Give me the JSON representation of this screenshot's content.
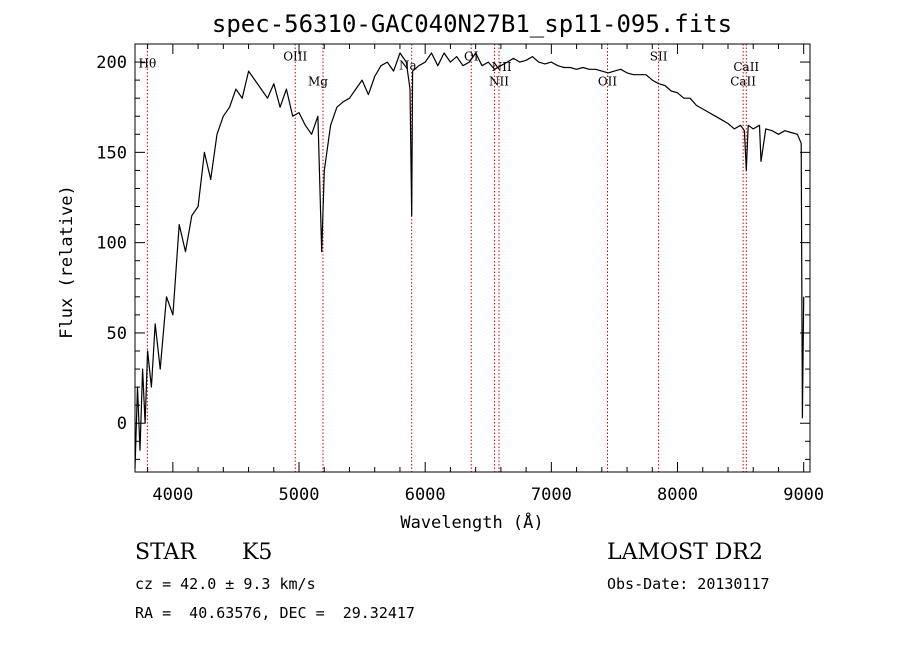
{
  "chart_data": {
    "type": "line",
    "title": "spec-56310-GAC040N27B1_sp11-095.fits",
    "xlabel": "Wavelength (Å)",
    "ylabel": "Flux (relative)",
    "xlim": [
      3700,
      9050
    ],
    "ylim": [
      -27,
      210
    ],
    "xticks": [
      4000,
      5000,
      6000,
      7000,
      8000,
      9000
    ],
    "yticks": [
      0,
      50,
      100,
      150,
      200
    ],
    "series": [
      {
        "name": "flux",
        "x": [
          3700,
          3720,
          3740,
          3760,
          3780,
          3800,
          3830,
          3860,
          3900,
          3950,
          4000,
          4050,
          4100,
          4150,
          4200,
          4250,
          4300,
          4350,
          4400,
          4450,
          4500,
          4550,
          4600,
          4650,
          4700,
          4750,
          4800,
          4850,
          4900,
          4950,
          5000,
          5050,
          5100,
          5150,
          5180,
          5200,
          5250,
          5300,
          5350,
          5400,
          5450,
          5500,
          5550,
          5600,
          5650,
          5700,
          5750,
          5800,
          5850,
          5880,
          5893,
          5900,
          5950,
          6000,
          6050,
          6100,
          6150,
          6200,
          6250,
          6300,
          6350,
          6400,
          6450,
          6500,
          6550,
          6600,
          6650,
          6700,
          6750,
          6800,
          6850,
          6900,
          6950,
          7000,
          7050,
          7100,
          7150,
          7200,
          7250,
          7300,
          7350,
          7400,
          7450,
          7500,
          7550,
          7600,
          7650,
          7700,
          7750,
          7800,
          7850,
          7900,
          7950,
          8000,
          8050,
          8100,
          8150,
          8200,
          8250,
          8300,
          8350,
          8400,
          8450,
          8500,
          8530,
          8545,
          8560,
          8600,
          8650,
          8662,
          8700,
          8750,
          8800,
          8850,
          8900,
          8950,
          8980,
          8990,
          9000
        ],
        "values": [
          -25,
          20,
          -15,
          30,
          0,
          40,
          20,
          55,
          30,
          70,
          60,
          110,
          95,
          115,
          120,
          150,
          135,
          160,
          170,
          175,
          185,
          180,
          195,
          190,
          185,
          180,
          188,
          175,
          185,
          170,
          172,
          165,
          160,
          170,
          95,
          140,
          165,
          175,
          178,
          180,
          185,
          190,
          182,
          192,
          198,
          200,
          195,
          205,
          200,
          185,
          115,
          195,
          198,
          200,
          205,
          198,
          205,
          200,
          203,
          198,
          200,
          205,
          198,
          200,
          196,
          198,
          200,
          202,
          200,
          201,
          203,
          200,
          199,
          200,
          198,
          197,
          197,
          196,
          197,
          196,
          196,
          195,
          194,
          195,
          196,
          194,
          193,
          193,
          193,
          190,
          188,
          187,
          184,
          183,
          180,
          180,
          176,
          174,
          172,
          170,
          168,
          166,
          163,
          165,
          162,
          140,
          165,
          163,
          165,
          145,
          163,
          162,
          160,
          162,
          161,
          160,
          155,
          3,
          70
        ]
      }
    ],
    "lines": [
      {
        "label": "Hθ",
        "x": 3798,
        "label_y": 197,
        "align": "center"
      },
      {
        "label": "OIII",
        "x": 4970,
        "label_y": 201,
        "align": "center"
      },
      {
        "label": "Mg",
        "x": 5190,
        "label_y": 187,
        "align": "right"
      },
      {
        "label": "Na",
        "x": 5893,
        "label_y": 196,
        "align": "right"
      },
      {
        "label": "OI",
        "x": 6365,
        "label_y": 201,
        "align": "center"
      },
      {
        "label": "NII",
        "x": 6550,
        "label_y": 195,
        "align": "left"
      },
      {
        "label": "NII",
        "x": 6585,
        "label_y": 187,
        "align": "center"
      },
      {
        "label": "OII",
        "x": 7445,
        "label_y": 187,
        "align": "center"
      },
      {
        "label": "SII",
        "x": 7850,
        "label_y": 201,
        "align": "center"
      },
      {
        "label": "CaII",
        "x": 8520,
        "label_y": 187,
        "align": "center"
      },
      {
        "label": "CaII",
        "x": 8545,
        "label_y": 195,
        "align": "center"
      }
    ]
  },
  "info": {
    "object_class": "STAR",
    "subclass": "K5",
    "survey": "LAMOST DR2",
    "redshift_line": "cz = 42.0 ± 9.3 km/s",
    "obs_date_line": "Obs-Date: 20130117",
    "coords_line": "RA =  40.63576, DEC =  29.32417"
  },
  "colors": {
    "spectrum": "#000000",
    "line_markers": "#cc0000",
    "axis": "#000000"
  }
}
